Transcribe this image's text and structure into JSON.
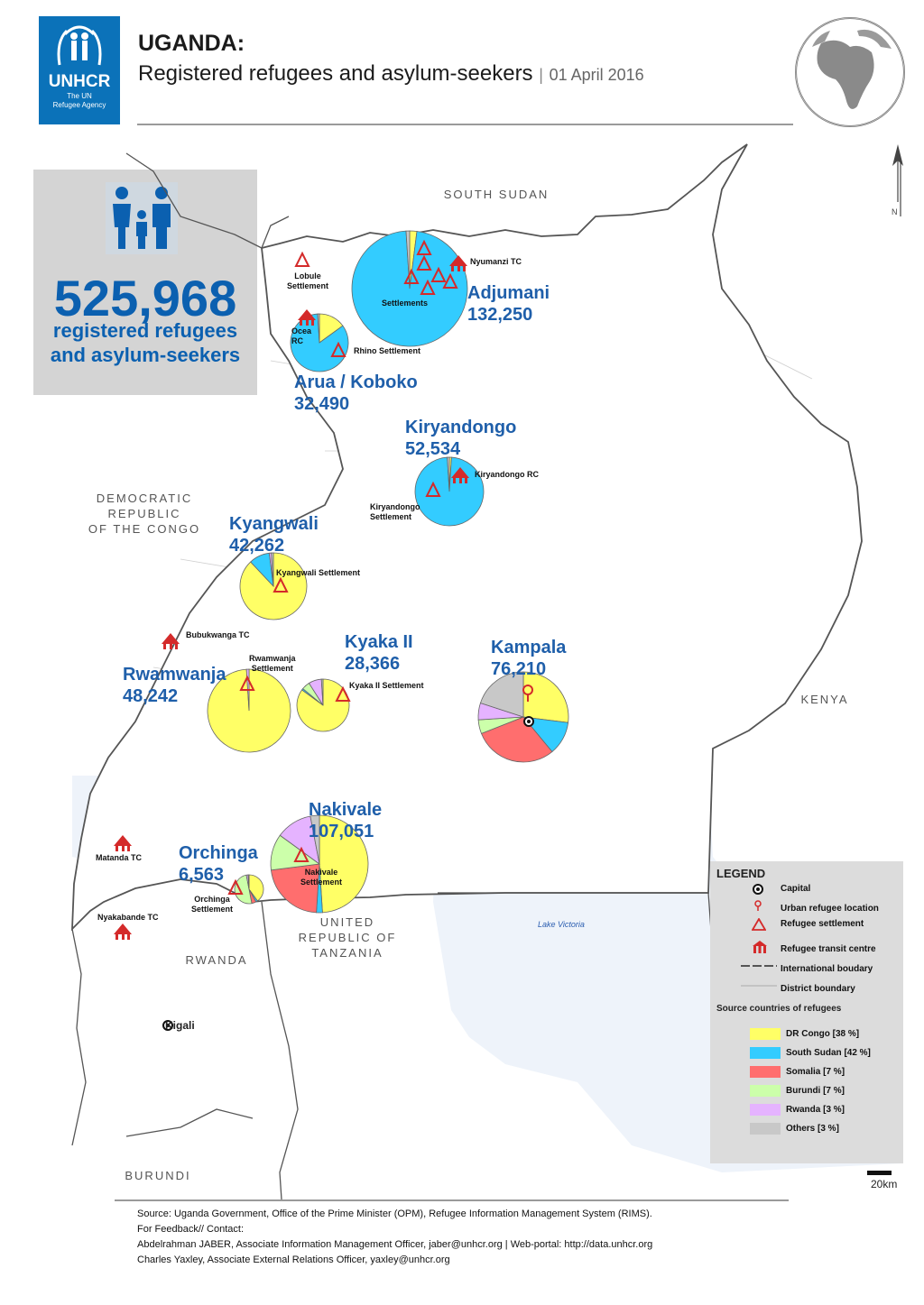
{
  "header": {
    "org_name": "UNHCR",
    "org_sub": "The UN\nRefugee Agency",
    "title": "UGANDA:",
    "subtitle": "Registered refugees and asylum-seekers",
    "separator": "|",
    "date": "01 April 2016"
  },
  "summary": {
    "total": "525,968",
    "label": "registered refugees\nand asylum-seekers"
  },
  "countries": {
    "south_sudan": "SOUTH SUDAN",
    "drc": "DEMOCRATIC\nREPUBLIC\nOF THE CONGO",
    "kenya": "KENYA",
    "tanzania": "UNITED\nREPUBLIC OF\nTANZANIA",
    "rwanda": "RWANDA",
    "burundi": "BURUNDI",
    "lake_victoria": "Lake Victoria",
    "kigali": "Kigali",
    "north_arrow": "N"
  },
  "locations": [
    {
      "name": "Adjumani",
      "value": "132,250",
      "shares": [
        2,
        97,
        0,
        0,
        0,
        1
      ]
    },
    {
      "name": "Arua / Koboko",
      "value": "32,490",
      "shares": [
        15,
        84,
        0,
        0,
        0,
        1
      ]
    },
    {
      "name": "Kiryandongo",
      "value": "52,534",
      "shares": [
        1,
        98,
        0,
        0,
        0,
        1
      ]
    },
    {
      "name": "Kyangwali",
      "value": "42,262",
      "shares": [
        88,
        10,
        0,
        0,
        1,
        1
      ]
    },
    {
      "name": "Rwamwanja",
      "value": "48,242",
      "shares": [
        99,
        0,
        0,
        0,
        1,
        0
      ]
    },
    {
      "name": "Kyaka II",
      "value": "28,366",
      "shares": [
        85,
        1,
        0,
        5,
        8,
        1
      ]
    },
    {
      "name": "Kampala",
      "value": "76,210",
      "shares": [
        27,
        12,
        30,
        5,
        6,
        20
      ]
    },
    {
      "name": "Nakivale",
      "value": "107,051",
      "shares": [
        49,
        2,
        22,
        12,
        12,
        3
      ]
    },
    {
      "name": "Orchinga",
      "value": "6,563",
      "shares": [
        40,
        2,
        5,
        50,
        2,
        1
      ]
    }
  ],
  "settlements": {
    "lobule": "Lobule\nSettlement",
    "nyumanzi": "Nyumanzi TC",
    "settlements": "Settlements",
    "ocea": "Ocea\nRC",
    "rhino": "Rhino Settlement",
    "kiryandongo_rc": "Kiryandongo RC",
    "kiryandongo_s": "Kiryandongo\nSettlement",
    "kyangwali_s": "Kyangwali Settlement",
    "bubukwanga": "Bubukwanga TC",
    "rwamwanja_s": "Rwamwanja\nSettlement",
    "kyaka_s": "Kyaka II Settlement",
    "matanda": "Matanda TC",
    "nyakabande": "Nyakabande TC",
    "orchinga_s": "Orchinga\nSettlement",
    "nakivale_s": "Nakivale\nSettlement"
  },
  "legend": {
    "title": "LEGEND",
    "capital": "Capital",
    "urban": "Urban refugee location",
    "settlement": "Refugee settlement",
    "transit": "Refugee transit centre",
    "intl": "International boudary",
    "district": "District boundary",
    "source_heading": "Source countries of refugees",
    "sources": [
      {
        "label": "DR Congo [38 %]",
        "color": "#ffff66"
      },
      {
        "label": "South Sudan [42 %]",
        "color": "#33ccff"
      },
      {
        "label": "Somalia [7 %]",
        "color": "#ff6e6e"
      },
      {
        "label": "Burundi [7 %]",
        "color": "#ccffaa"
      },
      {
        "label": "Rwanda [3 %]",
        "color": "#e5b3ff"
      },
      {
        "label": "Others   [3 %]",
        "color": "#c8c8c8"
      }
    ]
  },
  "scale": "20km",
  "footer": "Source: Uganda Government, Office of the Prime Minister (OPM), Refugee Information Management System (RIMS).\nFor Feedback// Contact:\nAbdelrahman JABER, Associate Information Management Officer, jaber@unhcr.org | Web-portal: http://data.unhcr.org\nCharles Yaxley, Associate External Relations Officer, yaxley@unhcr.org"
}
